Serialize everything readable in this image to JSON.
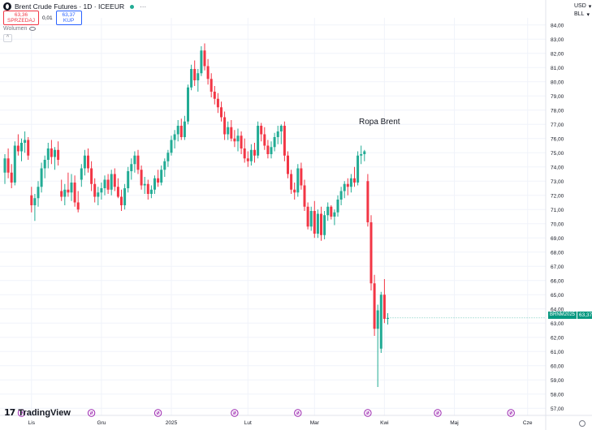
{
  "header": {
    "symbol_title": "Brent Crude Futures · 1D · ICEEUR",
    "sell_price": "63,36",
    "sell_label": "SPRZEDAJ",
    "spread": "0,01",
    "buy_price": "63,37",
    "buy_label": "KUP",
    "volume_label": "Wolumen"
  },
  "scale_labels": {
    "currency": "USD",
    "unit": "BLL"
  },
  "annotation": "Ropa Brent",
  "last_price_tag": {
    "name": "BRNM2025",
    "value": "63,37"
  },
  "branding": "TradingView",
  "colors": {
    "up": "#22ab94",
    "down": "#f23645",
    "event": "#9c27b0",
    "grid": "#f0f3fa"
  },
  "chart_data": {
    "type": "candlestick",
    "title": "",
    "ylim": [
      56.5,
      84.5
    ],
    "y_ticks": [
      "57,00",
      "58,00",
      "59,00",
      "60,00",
      "61,00",
      "62,00",
      "63,00",
      "64,00",
      "65,00",
      "66,00",
      "67,00",
      "68,00",
      "69,00",
      "70,00",
      "71,00",
      "72,00",
      "73,00",
      "74,00",
      "75,00",
      "76,00",
      "77,00",
      "78,00",
      "79,00",
      "80,00",
      "81,00",
      "82,00",
      "83,00",
      "84,00"
    ],
    "x_tick_labels": [
      {
        "label": "Lis",
        "index": 8
      },
      {
        "label": "Gru",
        "index": 29
      },
      {
        "label": "2025",
        "index": 50
      },
      {
        "label": "Lut",
        "index": 73
      },
      {
        "label": "Mar",
        "index": 93
      },
      {
        "label": "Kwi",
        "index": 114
      },
      {
        "label": "Maj",
        "index": 135
      },
      {
        "label": "Cze",
        "index": 157
      }
    ],
    "event_marker_indices": [
      5,
      26,
      46,
      69,
      88,
      109,
      130,
      152
    ],
    "candles": [
      [
        73.6,
        74.9,
        72.8,
        74.6
      ],
      [
        74.6,
        75.3,
        73.2,
        73.6
      ],
      [
        73.6,
        74.2,
        72.5,
        72.9
      ],
      [
        72.9,
        75.8,
        72.7,
        75.5
      ],
      [
        75.5,
        76.3,
        74.8,
        75.1
      ],
      [
        75.1,
        76.0,
        74.4,
        75.7
      ],
      [
        75.7,
        76.5,
        75.0,
        75.9
      ],
      [
        75.9,
        76.1,
        74.5,
        74.8
      ],
      [
        72.0,
        72.6,
        70.8,
        71.3
      ],
      [
        71.3,
        72.1,
        70.2,
        71.8
      ],
      [
        71.8,
        73.0,
        71.2,
        72.6
      ],
      [
        72.6,
        74.3,
        72.2,
        73.9
      ],
      [
        73.9,
        74.8,
        73.2,
        74.5
      ],
      [
        74.5,
        75.7,
        73.9,
        75.3
      ],
      [
        75.3,
        75.9,
        74.2,
        74.7
      ],
      [
        74.7,
        75.4,
        73.8,
        75.2
      ],
      [
        75.2,
        75.8,
        74.1,
        74.5
      ],
      [
        72.3,
        73.1,
        71.6,
        71.9
      ],
      [
        71.9,
        72.8,
        71.3,
        72.4
      ],
      [
        72.4,
        73.6,
        71.9,
        72.2
      ],
      [
        72.2,
        73.5,
        71.6,
        72.9
      ],
      [
        72.9,
        73.4,
        71.2,
        71.5
      ],
      [
        71.5,
        72.3,
        70.8,
        71.0
      ],
      [
        73.1,
        74.2,
        72.6,
        73.9
      ],
      [
        73.9,
        75.2,
        73.4,
        74.8
      ],
      [
        74.8,
        75.3,
        73.6,
        73.9
      ],
      [
        73.9,
        74.4,
        72.3,
        72.8
      ],
      [
        72.8,
        73.2,
        71.5,
        71.9
      ],
      [
        71.9,
        72.6,
        71.3,
        72.2
      ],
      [
        72.2,
        72.9,
        71.7,
        72.5
      ],
      [
        72.5,
        73.4,
        72.0,
        73.1
      ],
      [
        73.1,
        73.5,
        72.1,
        72.4
      ],
      [
        72.4,
        73.8,
        72.0,
        73.5
      ],
      [
        73.5,
        73.9,
        72.3,
        72.6
      ],
      [
        72.6,
        73.2,
        71.8,
        71.9
      ],
      [
        71.9,
        72.4,
        70.9,
        71.3
      ],
      [
        71.3,
        72.8,
        71.0,
        72.5
      ],
      [
        72.5,
        74.0,
        72.2,
        73.7
      ],
      [
        73.7,
        74.6,
        73.1,
        74.2
      ],
      [
        74.2,
        75.1,
        73.6,
        74.8
      ],
      [
        74.8,
        75.2,
        73.5,
        73.8
      ],
      [
        73.8,
        74.1,
        72.4,
        72.7
      ],
      [
        72.7,
        73.3,
        72.1,
        72.8
      ],
      [
        72.8,
        73.1,
        71.7,
        72.1
      ],
      [
        72.1,
        72.7,
        71.8,
        72.4
      ],
      [
        72.4,
        73.4,
        72.1,
        73.2
      ],
      [
        73.2,
        73.8,
        72.6,
        72.9
      ],
      [
        72.9,
        74.1,
        72.7,
        73.8
      ],
      [
        73.8,
        74.6,
        73.3,
        74.4
      ],
      [
        74.4,
        75.2,
        74.0,
        75.0
      ],
      [
        75.0,
        76.2,
        74.8,
        75.9
      ],
      [
        75.9,
        76.6,
        75.3,
        76.3
      ],
      [
        76.3,
        77.3,
        75.8,
        76.9
      ],
      [
        76.9,
        77.4,
        75.9,
        76.1
      ],
      [
        76.1,
        77.6,
        75.9,
        77.2
      ],
      [
        77.2,
        79.8,
        77.0,
        79.6
      ],
      [
        79.6,
        81.2,
        79.4,
        80.9
      ],
      [
        80.9,
        81.5,
        79.7,
        80.1
      ],
      [
        80.1,
        80.9,
        79.3,
        80.6
      ],
      [
        80.6,
        82.5,
        80.4,
        82.2
      ],
      [
        82.2,
        82.7,
        80.8,
        81.1
      ],
      [
        81.1,
        81.6,
        79.8,
        80.2
      ],
      [
        80.2,
        80.6,
        78.9,
        79.3
      ],
      [
        79.3,
        79.7,
        78.4,
        78.8
      ],
      [
        78.8,
        79.2,
        77.8,
        78.2
      ],
      [
        78.2,
        78.6,
        77.2,
        77.5
      ],
      [
        77.5,
        77.9,
        75.9,
        76.3
      ],
      [
        76.3,
        77.2,
        75.9,
        76.8
      ],
      [
        76.8,
        77.3,
        75.8,
        76.0
      ],
      [
        76.0,
        76.6,
        75.4,
        75.8
      ],
      [
        75.8,
        76.7,
        75.1,
        76.2
      ],
      [
        76.2,
        76.5,
        74.9,
        75.3
      ],
      [
        75.3,
        76.0,
        74.3,
        74.6
      ],
      [
        74.6,
        75.1,
        74.0,
        74.4
      ],
      [
        74.4,
        75.6,
        74.1,
        75.2
      ],
      [
        75.2,
        75.7,
        74.3,
        74.8
      ],
      [
        74.8,
        77.2,
        74.6,
        76.9
      ],
      [
        76.9,
        77.1,
        75.8,
        76.3
      ],
      [
        76.3,
        76.8,
        75.2,
        75.5
      ],
      [
        75.5,
        75.9,
        74.6,
        74.9
      ],
      [
        74.9,
        75.8,
        74.6,
        75.4
      ],
      [
        75.4,
        76.4,
        75.1,
        76.1
      ],
      [
        76.1,
        76.9,
        75.6,
        76.5
      ],
      [
        76.5,
        77.0,
        75.6,
        76.9
      ],
      [
        76.9,
        77.2,
        74.4,
        74.8
      ],
      [
        74.8,
        75.1,
        73.2,
        73.5
      ],
      [
        73.5,
        73.8,
        72.1,
        72.4
      ],
      [
        72.4,
        72.9,
        71.7,
        72.2
      ],
      [
        72.2,
        74.2,
        71.9,
        73.9
      ],
      [
        73.9,
        74.3,
        72.4,
        72.7
      ],
      [
        72.7,
        73.1,
        70.9,
        71.2
      ],
      [
        71.2,
        71.5,
        69.6,
        69.8
      ],
      [
        69.8,
        71.2,
        69.5,
        70.9
      ],
      [
        70.9,
        71.6,
        69.0,
        69.3
      ],
      [
        69.3,
        71.0,
        69.0,
        70.7
      ],
      [
        70.7,
        71.2,
        68.8,
        69.2
      ],
      [
        69.2,
        70.9,
        68.9,
        70.6
      ],
      [
        70.6,
        71.5,
        70.2,
        71.2
      ],
      [
        71.2,
        71.3,
        70.3,
        70.5
      ],
      [
        70.5,
        71.0,
        69.9,
        70.8
      ],
      [
        70.8,
        72.0,
        70.5,
        71.7
      ],
      [
        71.7,
        72.6,
        71.3,
        72.3
      ],
      [
        72.3,
        73.0,
        71.8,
        72.8
      ],
      [
        72.8,
        73.2,
        72.0,
        72.6
      ],
      [
        72.6,
        73.5,
        72.2,
        73.2
      ],
      [
        73.2,
        74.0,
        72.6,
        72.9
      ],
      [
        72.9,
        75.1,
        72.7,
        74.8
      ],
      [
        74.8,
        75.5,
        74.2,
        74.9
      ],
      [
        74.9,
        75.2,
        74.4,
        75.1
      ],
      [
        73.0,
        73.5,
        69.8,
        70.1
      ],
      [
        70.1,
        70.6,
        65.3,
        65.8
      ],
      [
        65.8,
        66.4,
        62.1,
        62.6
      ],
      [
        62.6,
        64.3,
        58.5,
        63.9
      ],
      [
        61.2,
        65.2,
        60.9,
        65.0
      ],
      [
        65.0,
        66.1,
        63.0,
        63.3
      ],
      [
        63.3,
        63.7,
        62.9,
        63.37
      ]
    ]
  }
}
